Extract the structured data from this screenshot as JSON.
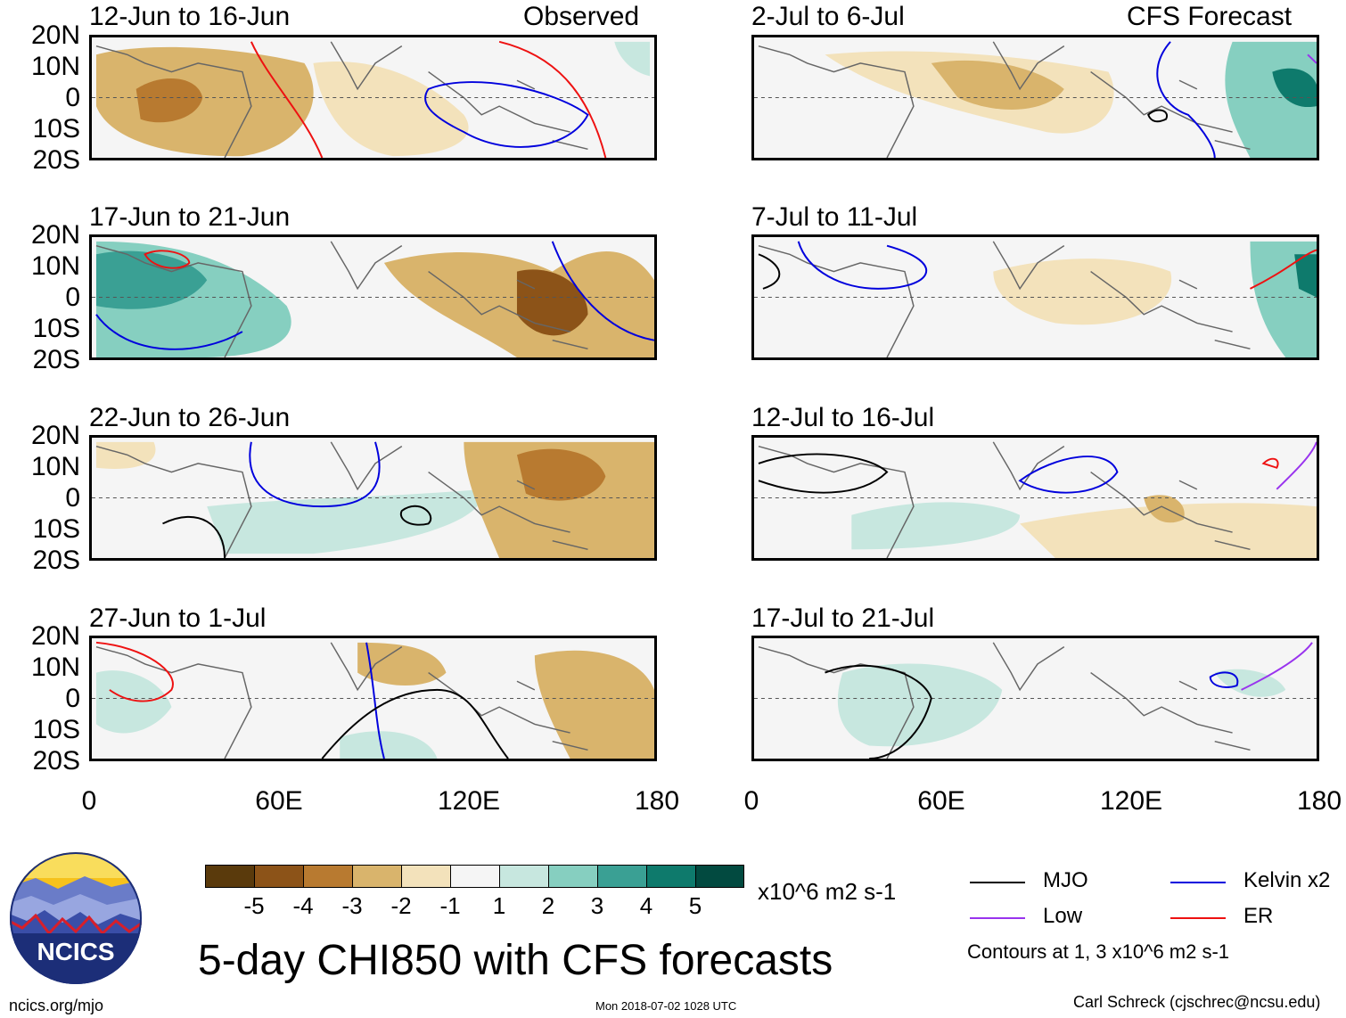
{
  "title": "5-day CHI850 with CFS forecasts",
  "site_url": "ncics.org/mjo",
  "timestamp": "Mon 2018-07-02 1028 UTC",
  "author": "Carl Schreck (cjschrec@ncsu.edu)",
  "logo": {
    "text": "NCICS",
    "icon": "ncics-logo-icon"
  },
  "y_ticks": [
    "20N",
    "10N",
    "0",
    "10S",
    "20S"
  ],
  "x_ticks": [
    "0",
    "60E",
    "120E",
    "180"
  ],
  "left_column": {
    "label": "Observed",
    "panels": [
      {
        "title": "12-Jun to 16-Jun"
      },
      {
        "title": "17-Jun to 21-Jun"
      },
      {
        "title": "22-Jun to 26-Jun"
      },
      {
        "title": "27-Jun to 1-Jul"
      }
    ]
  },
  "right_column": {
    "label": "CFS Forecast",
    "panels": [
      {
        "title": "2-Jul to 6-Jul"
      },
      {
        "title": "7-Jul to 11-Jul"
      },
      {
        "title": "12-Jul to 16-Jul"
      },
      {
        "title": "17-Jul to 21-Jul"
      }
    ]
  },
  "colorbar": {
    "units": "x10^6 m2 s-1",
    "labels": [
      "-5",
      "-4",
      "-3",
      "-2",
      "-1",
      "1",
      "2",
      "3",
      "4",
      "5"
    ],
    "colors": [
      "#5a3a0c",
      "#8c5318",
      "#b87a30",
      "#d9b46c",
      "#f3e2bb",
      "#f5f5f5",
      "#c7e7df",
      "#86cfc0",
      "#3aa094",
      "#0e7a6c",
      "#024a40"
    ]
  },
  "legend": {
    "items": [
      {
        "label": "MJO",
        "color": "#000000"
      },
      {
        "label": "Kelvin x2",
        "color": "#0000dd"
      },
      {
        "label": "Low",
        "color": "#9933ee"
      },
      {
        "label": "ER",
        "color": "#ee1111"
      }
    ],
    "note": "Contours at 1, 3 x10^6 m2 s-1"
  }
}
